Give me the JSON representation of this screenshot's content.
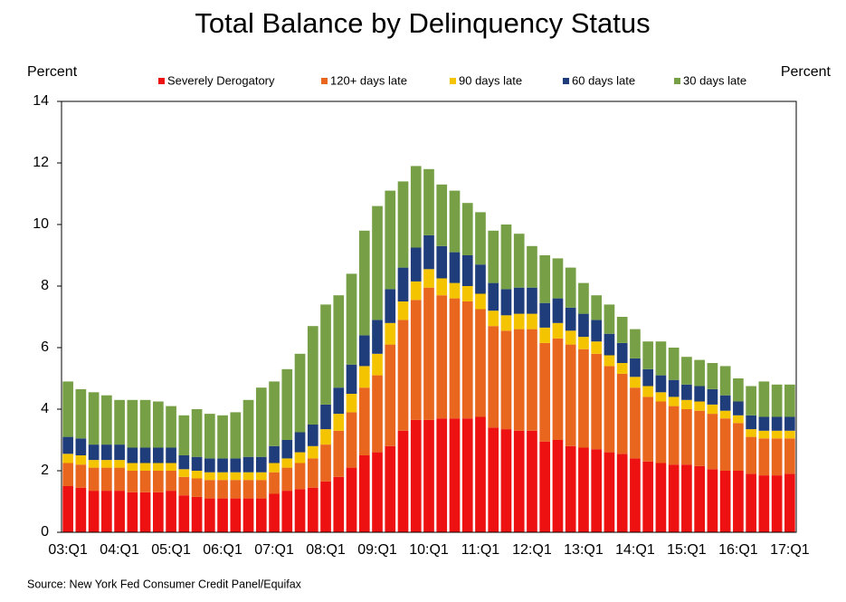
{
  "chart_data": {
    "type": "stacked-bar",
    "title": "Total Balance by Delinquency Status",
    "y_label": "Percent",
    "y2_label": "Percent",
    "source": "Source: New York Fed Consumer Credit Panel/Equifax",
    "categories": [
      "03:Q1",
      null,
      null,
      null,
      "04:Q1",
      null,
      null,
      null,
      "05:Q1",
      null,
      null,
      null,
      "06:Q1",
      null,
      null,
      null,
      "07:Q1",
      null,
      null,
      null,
      "08:Q1",
      null,
      null,
      null,
      "09:Q1",
      null,
      null,
      null,
      "10:Q1",
      null,
      null,
      null,
      "11:Q1",
      null,
      null,
      null,
      "12:Q1",
      null,
      null,
      null,
      "13:Q1",
      null,
      null,
      null,
      "14:Q1",
      null,
      null,
      null,
      "15:Q1",
      null,
      null,
      null,
      "16:Q1",
      null,
      null,
      null,
      "17:Q1"
    ],
    "ylim": [
      0,
      14
    ],
    "yticks": [
      0,
      2,
      4,
      6,
      8,
      10,
      12,
      14
    ],
    "series": [
      {
        "name": "Severely Derogatory",
        "color": "#ee1111",
        "values": [
          1.5,
          1.45,
          1.35,
          1.35,
          1.35,
          1.3,
          1.3,
          1.3,
          1.35,
          1.2,
          1.15,
          1.1,
          1.1,
          1.1,
          1.1,
          1.1,
          1.25,
          1.35,
          1.4,
          1.45,
          1.65,
          1.8,
          2.1,
          2.5,
          2.6,
          2.8,
          3.3,
          3.65,
          3.65,
          3.7,
          3.7,
          3.7,
          3.75,
          3.4,
          3.35,
          3.3,
          3.3,
          2.95,
          3.0,
          2.8,
          2.75,
          2.7,
          2.6,
          2.55,
          2.4,
          2.3,
          2.25,
          2.2,
          2.2,
          2.15,
          2.05,
          2.0,
          2.0,
          1.9,
          1.85,
          1.85,
          1.9
        ]
      },
      {
        "name": "120+ days late",
        "color": "#e8661e",
        "values": [
          0.75,
          0.75,
          0.75,
          0.75,
          0.75,
          0.7,
          0.7,
          0.7,
          0.65,
          0.6,
          0.6,
          0.6,
          0.6,
          0.6,
          0.6,
          0.6,
          0.7,
          0.75,
          0.85,
          0.95,
          1.2,
          1.5,
          1.8,
          2.2,
          2.5,
          3.3,
          3.6,
          3.9,
          4.3,
          4.0,
          3.9,
          3.8,
          3.5,
          3.3,
          3.2,
          3.3,
          3.3,
          3.2,
          3.3,
          3.3,
          3.2,
          3.1,
          2.8,
          2.6,
          2.3,
          2.1,
          2.0,
          1.9,
          1.8,
          1.8,
          1.8,
          1.7,
          1.55,
          1.2,
          1.2,
          1.2,
          1.15
        ]
      },
      {
        "name": "90 days late",
        "color": "#f5c400",
        "values": [
          0.3,
          0.3,
          0.25,
          0.25,
          0.25,
          0.25,
          0.25,
          0.25,
          0.25,
          0.25,
          0.25,
          0.25,
          0.25,
          0.25,
          0.25,
          0.25,
          0.3,
          0.3,
          0.35,
          0.4,
          0.5,
          0.55,
          0.6,
          0.7,
          0.7,
          0.7,
          0.6,
          0.6,
          0.6,
          0.55,
          0.5,
          0.5,
          0.5,
          0.5,
          0.5,
          0.5,
          0.5,
          0.5,
          0.5,
          0.45,
          0.4,
          0.4,
          0.35,
          0.35,
          0.35,
          0.35,
          0.3,
          0.3,
          0.3,
          0.3,
          0.3,
          0.25,
          0.25,
          0.25,
          0.25,
          0.25,
          0.25
        ]
      },
      {
        "name": "60 days late",
        "color": "#1f3d7a",
        "values": [
          0.55,
          0.55,
          0.5,
          0.5,
          0.5,
          0.5,
          0.5,
          0.5,
          0.5,
          0.45,
          0.45,
          0.45,
          0.45,
          0.45,
          0.5,
          0.5,
          0.55,
          0.6,
          0.65,
          0.7,
          0.8,
          0.85,
          0.95,
          1.0,
          1.1,
          1.1,
          1.1,
          1.1,
          1.1,
          1.05,
          1.0,
          1.0,
          0.95,
          0.9,
          0.85,
          0.85,
          0.85,
          0.8,
          0.8,
          0.75,
          0.75,
          0.7,
          0.7,
          0.65,
          0.6,
          0.55,
          0.55,
          0.55,
          0.5,
          0.5,
          0.5,
          0.5,
          0.45,
          0.45,
          0.45,
          0.45,
          0.45
        ]
      },
      {
        "name": "30 days late",
        "color": "#77a046",
        "values": [
          1.8,
          1.6,
          1.7,
          1.6,
          1.45,
          1.55,
          1.55,
          1.5,
          1.35,
          1.3,
          1.55,
          1.45,
          1.4,
          1.5,
          1.85,
          2.25,
          2.1,
          2.3,
          2.55,
          3.2,
          3.25,
          3.0,
          2.95,
          3.4,
          3.7,
          3.2,
          2.8,
          2.65,
          2.15,
          2.0,
          2.0,
          1.7,
          1.7,
          1.7,
          2.1,
          1.75,
          1.35,
          1.55,
          1.3,
          1.3,
          1.0,
          0.8,
          0.95,
          0.85,
          0.95,
          0.9,
          1.1,
          1.05,
          0.9,
          0.85,
          0.85,
          0.95,
          0.75,
          0.95,
          1.15,
          1.05,
          1.05
        ]
      }
    ]
  }
}
